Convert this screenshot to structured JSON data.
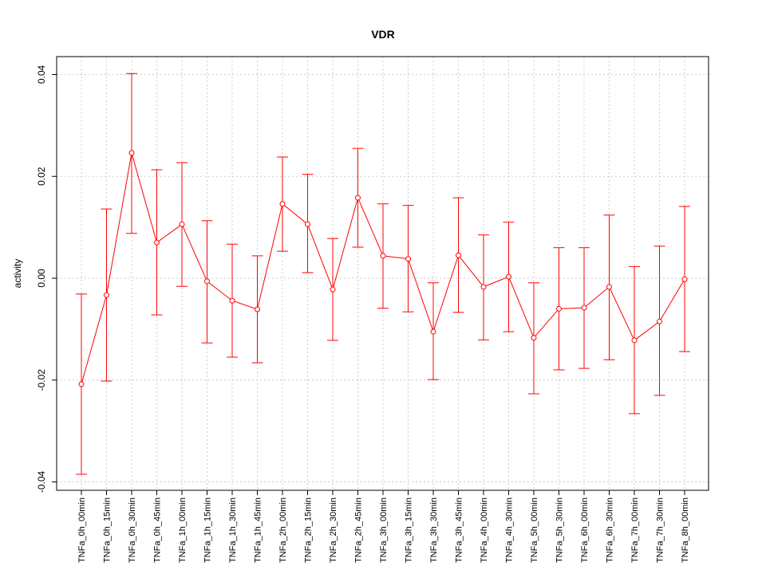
{
  "chart_data": {
    "type": "line",
    "title": "VDR",
    "xlabel": "",
    "ylabel": "activity",
    "ylim": [
      -0.042,
      0.043
    ],
    "yticks": [
      -0.04,
      -0.02,
      0.0,
      0.02,
      0.04
    ],
    "ytick_labels": [
      "-0.04",
      "-0.02",
      "0.00",
      "0.02",
      "0.04"
    ],
    "grid": true,
    "color": "#ff0000",
    "categories": [
      "TNFa_0h_00min",
      "TNFa_0h_15min",
      "TNFa_0h_30min",
      "TNFa_0h_45min",
      "TNFa_1h_00min",
      "TNFa_1h_15min",
      "TNFa_1h_30min",
      "TNFa_1h_45min",
      "TNFa_2h_00min",
      "TNFa_2h_15min",
      "TNFa_2h_30min",
      "TNFa_2h_45min",
      "TNFa_3h_00min",
      "TNFa_3h_15min",
      "TNFa_3h_30min",
      "TNFa_3h_45min",
      "TNFa_4h_00min",
      "TNFa_4h_30min",
      "TNFa_5h_00min",
      "TNFa_5h_30min",
      "TNFa_6h_00min",
      "TNFa_6h_30min",
      "TNFa_7h_00min",
      "TNFa_7h_30min",
      "TNFa_8h_00min"
    ],
    "values": [
      -0.0208,
      -0.0033,
      0.0246,
      0.007,
      0.0106,
      -0.0006,
      -0.0044,
      -0.0061,
      0.0146,
      0.0106,
      -0.0022,
      0.0158,
      0.0044,
      0.0038,
      -0.0105,
      0.0045,
      -0.0017,
      0.0003,
      -0.0117,
      -0.006,
      -0.0058,
      -0.0017,
      -0.0122,
      -0.0085,
      -0.0002
    ],
    "upper": [
      -0.0031,
      0.0136,
      0.0402,
      0.0213,
      0.0227,
      0.0113,
      0.0067,
      0.0044,
      0.0238,
      0.0204,
      0.0078,
      0.0255,
      0.0146,
      0.0143,
      -0.0009,
      0.0158,
      0.0085,
      0.011,
      -0.0009,
      0.006,
      0.006,
      0.0124,
      0.0023,
      0.0063,
      0.0141
    ],
    "lower": [
      -0.0385,
      -0.0202,
      0.0088,
      -0.0072,
      -0.0016,
      -0.0127,
      -0.0155,
      -0.0166,
      0.0053,
      0.0011,
      -0.0122,
      0.0061,
      -0.0059,
      -0.0066,
      -0.0199,
      -0.0067,
      -0.0121,
      -0.0105,
      -0.0227,
      -0.018,
      -0.0177,
      -0.016,
      -0.0266,
      -0.023,
      -0.0144
    ]
  }
}
